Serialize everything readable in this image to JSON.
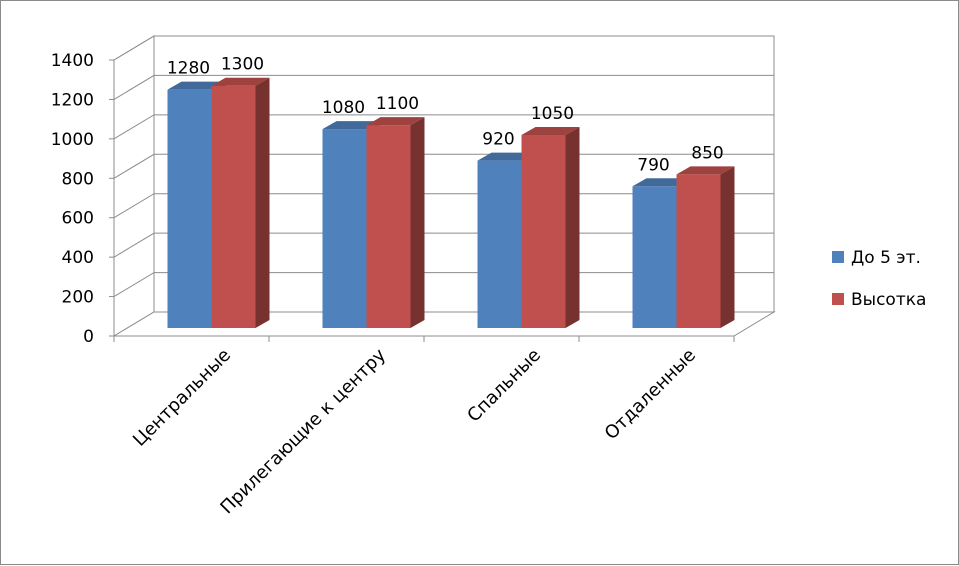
{
  "chart_data": {
    "type": "bar",
    "categories": [
      "Центральные",
      "Прилегающие к центру",
      "Спальные",
      "Отдаленные"
    ],
    "series": [
      {
        "name": "До 5 эт.",
        "values": [
          1280,
          1080,
          920,
          790
        ],
        "color": "#4f81bd"
      },
      {
        "name": "Высотка",
        "values": [
          1300,
          1100,
          1050,
          850
        ],
        "color": "#c0504d"
      }
    ],
    "y_ticks": [
      "0",
      "200",
      "400",
      "600",
      "800",
      "1000",
      "1200",
      "1400"
    ],
    "ylim": [
      0,
      1400
    ],
    "grid": true,
    "legend_position": "right",
    "style": "3d-clustered-column"
  }
}
